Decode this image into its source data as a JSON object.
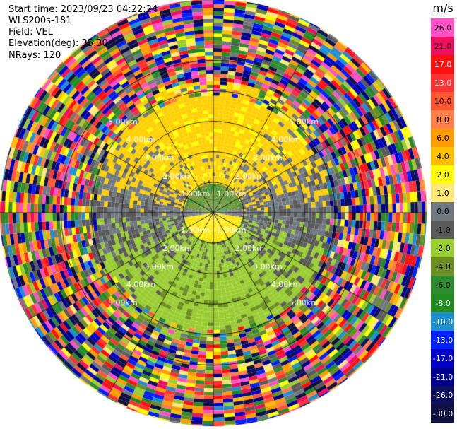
{
  "header": {
    "start_time": "Start time: 2023/09/23 04:22:24",
    "instrument": "WLS200s-181",
    "field": "Field: VEL",
    "elevation": "Elevation(deg): 35.30",
    "nrays": "NRays: 120"
  },
  "chart_data": {
    "type": "heatmap",
    "subtype": "ppi-polar",
    "field": "VEL",
    "units": "m/s",
    "range_rings_km": [
      1,
      2,
      3,
      4,
      5
    ],
    "ring_labels": [
      "1.00km",
      "2.00km",
      "3.00km",
      "4.00km",
      "5.00km"
    ],
    "max_range_km": 7.0,
    "n_rays": 120,
    "spokes_deg": [
      0,
      30,
      60,
      90,
      120,
      150,
      180,
      210,
      240,
      270,
      300,
      330
    ],
    "colorbar": {
      "label": "m/s",
      "ticks": [
        "26.0",
        "21.0",
        "17.0",
        "13.0",
        "10.0",
        "8.0",
        "6.0",
        "4.0",
        "2.0",
        "1.0",
        "0.0",
        "-1.0",
        "-2.0",
        "-4.0",
        "-6.0",
        "-8.0",
        "-10.0",
        "-13.0",
        "-17.0",
        "-21.0",
        "-26.0",
        "-30.0"
      ],
      "colors": [
        "#ff50c8",
        "#f01060",
        "#ff1010",
        "#ff3030",
        "#ff5830",
        "#ff8048",
        "#ff9c00",
        "#ffc000",
        "#ffff00",
        "#ffe878",
        "#707880",
        "#5a5a5a",
        "#9acd32",
        "#6b8e23",
        "#2e8b2e",
        "#228b22",
        "#1e90d0",
        "#0020ff",
        "#0000c8",
        "#000090",
        "#101060",
        "#101040"
      ]
    }
  }
}
